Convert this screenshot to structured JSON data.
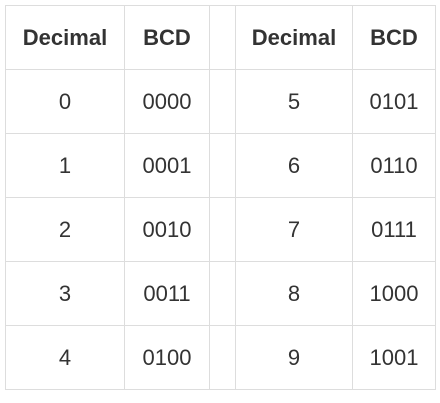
{
  "headers": {
    "left_decimal": "Decimal",
    "left_bcd": "BCD",
    "right_decimal": "Decimal",
    "right_bcd": "BCD"
  },
  "rows": [
    {
      "left_decimal": "0",
      "left_bcd": "0000",
      "right_decimal": "5",
      "right_bcd": "0101"
    },
    {
      "left_decimal": "1",
      "left_bcd": "0001",
      "right_decimal": "6",
      "right_bcd": "0110"
    },
    {
      "left_decimal": "2",
      "left_bcd": "0010",
      "right_decimal": "7",
      "right_bcd": "0111"
    },
    {
      "left_decimal": "3",
      "left_bcd": "0011",
      "right_decimal": "8",
      "right_bcd": "1000"
    },
    {
      "left_decimal": "4",
      "left_bcd": "0100",
      "right_decimal": "9",
      "right_bcd": "1001"
    }
  ]
}
